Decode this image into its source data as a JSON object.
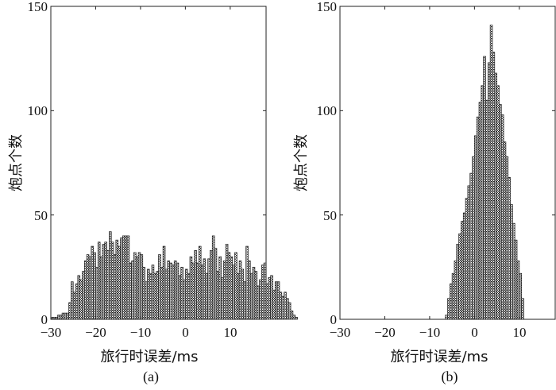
{
  "chart_data": [
    {
      "type": "bar",
      "panel_label": "(a)",
      "title": "",
      "xlabel": "旅行时误差/ms",
      "ylabel": "炮点个数",
      "xlim": [
        -30,
        18
      ],
      "ylim": [
        0,
        150
      ],
      "xticks": [
        -30,
        -20,
        -10,
        0,
        10
      ],
      "yticks": [
        0,
        50,
        100,
        150
      ],
      "xtick_labels": [
        "−30",
        "−20",
        "−10",
        "0",
        "10"
      ],
      "ytick_labels": [
        "0",
        "50",
        "100",
        "150"
      ],
      "bin_width": 0.5,
      "bin_start": -30,
      "values": [
        1,
        1,
        1,
        2,
        2,
        3,
        3,
        3,
        8,
        18,
        13,
        17,
        21,
        19,
        23,
        28,
        31,
        30,
        35,
        32,
        25,
        37,
        30,
        36,
        37,
        33,
        42,
        37,
        31,
        38,
        35,
        39,
        40,
        40,
        40,
        27,
        28,
        32,
        30,
        32,
        31,
        25,
        18,
        24,
        22,
        26,
        22,
        23,
        31,
        25,
        35,
        24,
        28,
        27,
        26,
        28,
        27,
        21,
        25,
        19,
        24,
        22,
        30,
        27,
        33,
        27,
        35,
        26,
        29,
        22,
        29,
        33,
        40,
        34,
        23,
        30,
        20,
        28,
        36,
        32,
        30,
        26,
        32,
        22,
        28,
        24,
        18,
        35,
        28,
        22,
        25,
        23,
        16,
        19,
        26,
        27,
        17,
        20,
        21,
        14,
        18,
        18,
        13,
        11,
        13,
        10,
        8,
        4,
        2,
        1
      ]
    },
    {
      "type": "bar",
      "panel_label": "(b)",
      "title": "",
      "xlabel": "旅行时误差/ms",
      "ylabel": "炮点个数",
      "xlim": [
        -30,
        18
      ],
      "ylim": [
        0,
        150
      ],
      "xticks": [
        -30,
        -20,
        -10,
        0,
        10
      ],
      "yticks": [
        0,
        50,
        100,
        150
      ],
      "xtick_labels": [
        "−30",
        "−20",
        "−10",
        "0",
        "10"
      ],
      "ytick_labels": [
        "0",
        "50",
        "100",
        "150"
      ],
      "bin_width": 0.5,
      "bin_start": -6.5,
      "values": [
        2,
        10,
        17,
        22,
        28,
        36,
        41,
        47,
        51,
        58,
        64,
        70,
        78,
        88,
        97,
        104,
        112,
        126,
        105,
        123,
        141,
        128,
        118,
        112,
        103,
        98,
        85,
        78,
        68,
        55,
        46,
        38,
        28,
        22,
        10
      ]
    }
  ]
}
